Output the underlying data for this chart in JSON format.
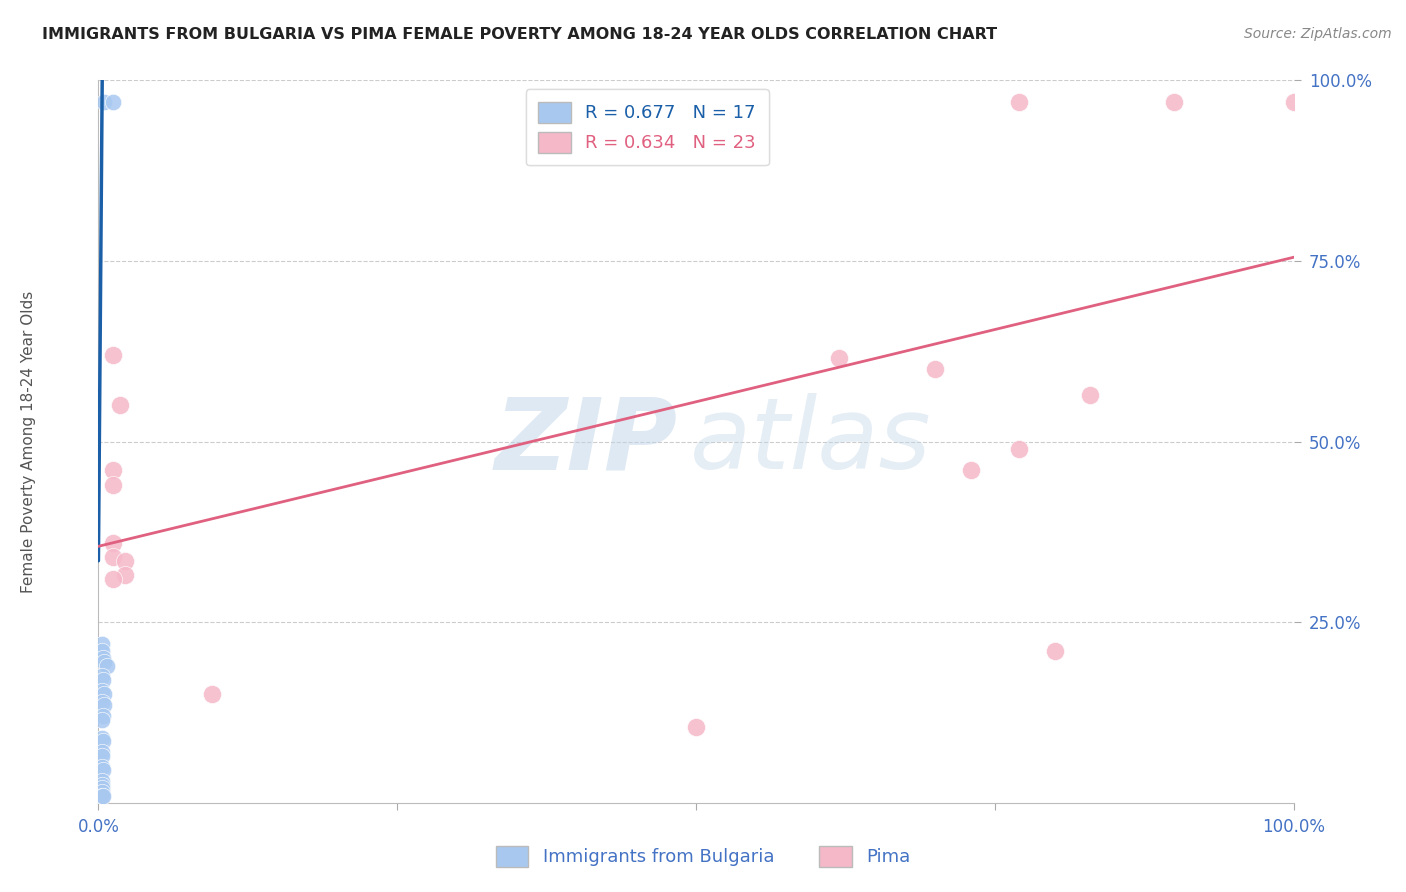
{
  "title": "IMMIGRANTS FROM BULGARIA VS PIMA FEMALE POVERTY AMONG 18-24 YEAR OLDS CORRELATION CHART",
  "source": "Source: ZipAtlas.com",
  "ylabel": "Female Poverty Among 18-24 Year Olds",
  "watermark_zip": "ZIP",
  "watermark_atlas": "atlas",
  "bulgaria_points_x": [
    0.005,
    0.012,
    0.003,
    0.003,
    0.004,
    0.005,
    0.007,
    0.003,
    0.004,
    0.003,
    0.005,
    0.003,
    0.005,
    0.004,
    0.003,
    0.003,
    0.004,
    0.003,
    0.003,
    0.003,
    0.004,
    0.003,
    0.003,
    0.003,
    0.003,
    0.003,
    0.004
  ],
  "bulgaria_points_y": [
    0.97,
    0.97,
    0.22,
    0.21,
    0.2,
    0.195,
    0.19,
    0.175,
    0.17,
    0.155,
    0.15,
    0.14,
    0.135,
    0.12,
    0.115,
    0.09,
    0.085,
    0.07,
    0.065,
    0.05,
    0.045,
    0.03,
    0.025,
    0.02,
    0.015,
    0.01,
    0.01
  ],
  "pima_points_x": [
    0.012,
    0.018,
    0.012,
    0.012,
    0.012,
    0.012,
    0.022,
    0.022,
    0.012,
    0.095,
    0.5,
    0.62,
    0.7,
    0.73,
    0.77,
    0.8,
    0.83,
    0.38,
    0.77,
    0.9,
    1.0
  ],
  "pima_points_y": [
    0.62,
    0.55,
    0.46,
    0.44,
    0.36,
    0.34,
    0.335,
    0.315,
    0.31,
    0.15,
    0.105,
    0.615,
    0.6,
    0.46,
    0.49,
    0.21,
    0.565,
    0.97,
    0.97,
    0.97,
    0.97
  ],
  "bulgaria_color": "#A8C8F0",
  "pima_color": "#F5B8C8",
  "bulgaria_line_color": "#1A5FA8",
  "pima_line_color": "#E06080",
  "bg_color": "#FFFFFF",
  "grid_color": "#CCCCCC",
  "title_color": "#222222",
  "axis_color": "#4472C4",
  "xlim": [
    0,
    1.0
  ],
  "ylim": [
    0,
    1.0
  ],
  "bul_reg_intercept": 0.335,
  "bul_reg_slope": 210,
  "pima_reg_intercept": 0.355,
  "pima_reg_slope": 0.4
}
